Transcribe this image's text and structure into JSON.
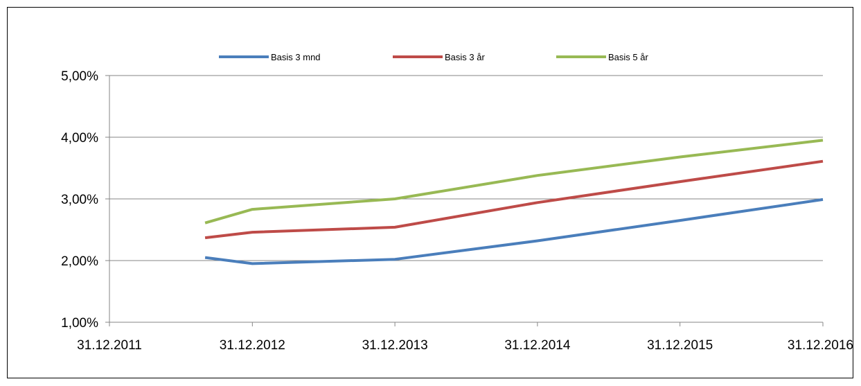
{
  "chart_data": {
    "type": "line",
    "title": "",
    "xlabel": "",
    "ylabel": "",
    "x_ticks": [
      "31.12.2011",
      "31.12.2012",
      "31.12.2013",
      "31.12.2014",
      "31.12.2015",
      "31.12.2016"
    ],
    "y_ticks": [
      "1,00%",
      "2,00%",
      "3,00%",
      "4,00%",
      "5,00%"
    ],
    "ylim": [
      1.0,
      5.0
    ],
    "xlim": [
      "2011-12-31",
      "2016-12-31"
    ],
    "grid": true,
    "legend_position": "top",
    "x": [
      "2012-09-01",
      "2012-12-31",
      "2013-12-31",
      "2014-12-31",
      "2015-12-31",
      "2016-12-31"
    ],
    "series": [
      {
        "name": "Basis 3 mnd",
        "color": "#4a7ebb",
        "values": [
          2.05,
          1.95,
          2.02,
          2.32,
          2.65,
          2.99
        ]
      },
      {
        "name": "Basis 3 år",
        "color": "#be4b48",
        "values": [
          2.37,
          2.46,
          2.54,
          2.94,
          3.28,
          3.61
        ]
      },
      {
        "name": "Basis 5 år",
        "color": "#98b954",
        "values": [
          2.61,
          2.83,
          3.0,
          3.38,
          3.68,
          3.95
        ]
      }
    ]
  }
}
